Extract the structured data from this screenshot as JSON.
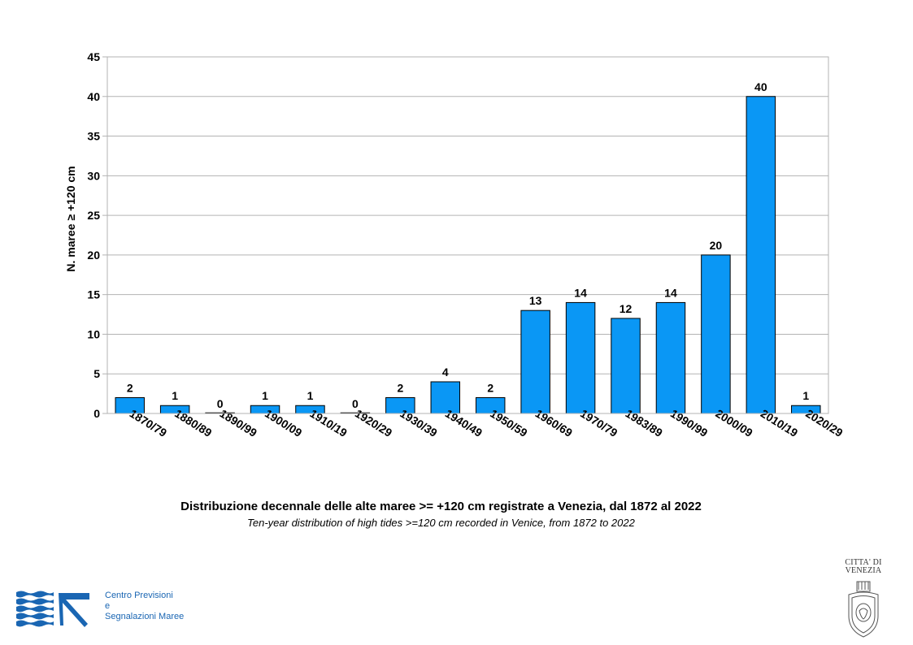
{
  "chart_data": {
    "type": "bar",
    "categories": [
      "1870/79",
      "1880/89",
      "1890/99",
      "1900/09",
      "1910/19",
      "1920/29",
      "1930/39",
      "1940/49",
      "1950/59",
      "1960/69",
      "1970/79",
      "1983/89",
      "1990/99",
      "2000/09",
      "2010/19",
      "2020/29"
    ],
    "values": [
      2,
      1,
      0,
      1,
      1,
      0,
      2,
      4,
      2,
      13,
      14,
      12,
      14,
      20,
      40,
      1
    ],
    "title": "Distribuzione decennale delle alte maree >= +120 cm registrate a Venezia, dal 1872 al 2022",
    "subtitle": "Ten-year distribution of high tides >=120 cm recorded in Venice, from 1872 to 2022",
    "xlabel": "",
    "ylabel": "N. maree ≥ +120 cm",
    "ylim": [
      0,
      45
    ],
    "yticks": [
      0,
      5,
      10,
      15,
      20,
      25,
      30,
      35,
      40,
      45
    ],
    "grid": true,
    "bar_color": "#0a97f5",
    "data_labels": true
  },
  "footer": {
    "org_name_lines": [
      "Centro Previsioni",
      "e",
      "Segnalazioni Maree"
    ],
    "city_lines": [
      "CITTA' DI",
      "VENEZIA"
    ],
    "logo_icon": "waves-arrow-logo-icon",
    "seal_icon": "city-seal-icon",
    "brand_color": "#1a66b3"
  }
}
